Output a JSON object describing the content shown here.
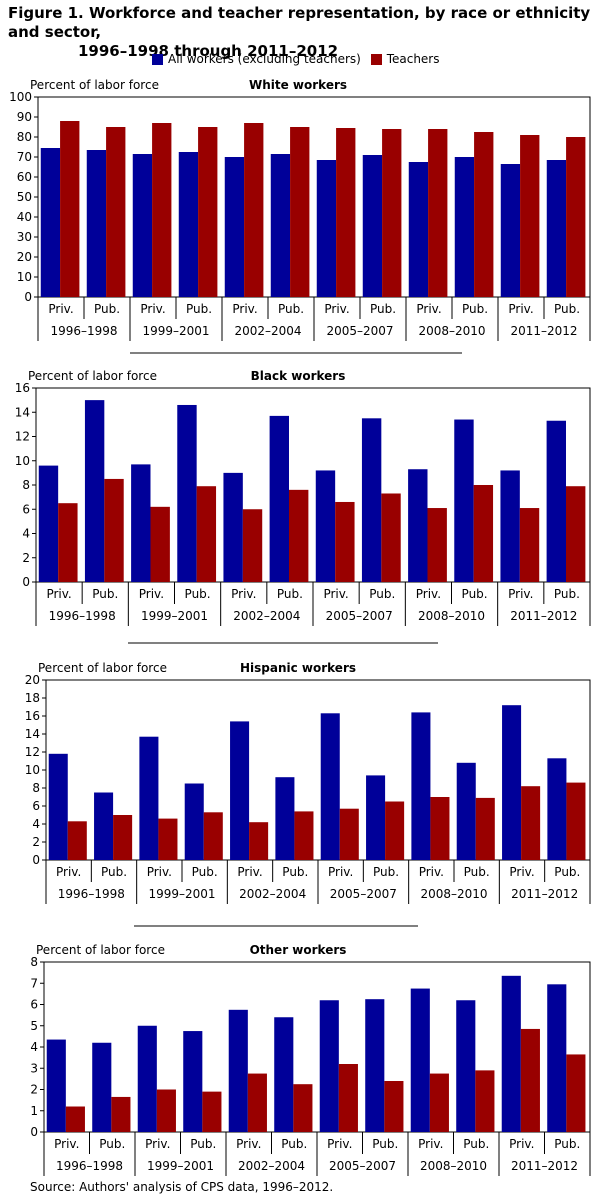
{
  "figure": {
    "title_line1": "Figure 1. Workforce and teacher representation, by race or ethnicity and sector,",
    "title_line2": "1996–1998 through 2011–2012",
    "source": "Source: Authors' analysis of CPS data, 1996–2012."
  },
  "legend": {
    "series1": "All workers (excluding teachers)",
    "series2": "Teachers",
    "color1": "#000099",
    "color2": "#990000"
  },
  "chart_data": [
    {
      "type": "bar",
      "title": "White workers",
      "ylabel": "Percent of labor force",
      "ylim": [
        0,
        100
      ],
      "yticks": [
        0,
        10,
        20,
        30,
        40,
        50,
        60,
        70,
        80,
        90,
        100
      ],
      "categories": [
        "Priv.",
        "Pub.",
        "Priv.",
        "Pub.",
        "Priv.",
        "Pub.",
        "Priv.",
        "Pub.",
        "Priv.",
        "Pub.",
        "Priv.",
        "Pub."
      ],
      "groups": [
        "1996–1998",
        "1999–2001",
        "2002–2004",
        "2005–2007",
        "2008–2010",
        "2011–2012"
      ],
      "series": [
        {
          "name": "All workers (excluding teachers)",
          "values": [
            74.5,
            73.5,
            71.5,
            72.5,
            70,
            71.5,
            68.5,
            71,
            67.5,
            70,
            66.5,
            68.5
          ]
        },
        {
          "name": "Teachers",
          "values": [
            88,
            85,
            87,
            85,
            87,
            85,
            84.5,
            84,
            84,
            82.5,
            81,
            80
          ]
        }
      ]
    },
    {
      "type": "bar",
      "title": "Black workers",
      "ylabel": "Percent of labor force",
      "ylim": [
        0,
        16
      ],
      "yticks": [
        0,
        2,
        4,
        6,
        8,
        10,
        12,
        14,
        16
      ],
      "categories": [
        "Priv.",
        "Pub.",
        "Priv.",
        "Pub.",
        "Priv.",
        "Pub.",
        "Priv.",
        "Pub.",
        "Priv.",
        "Pub.",
        "Priv.",
        "Pub."
      ],
      "groups": [
        "1996–1998",
        "1999–2001",
        "2002–2004",
        "2005–2007",
        "2008–2010",
        "2011–2012"
      ],
      "series": [
        {
          "name": "All workers (excluding teachers)",
          "values": [
            9.6,
            15,
            9.7,
            14.6,
            9,
            13.7,
            9.2,
            13.5,
            9.3,
            13.4,
            9.2,
            13.3
          ]
        },
        {
          "name": "Teachers",
          "values": [
            6.5,
            8.5,
            6.2,
            7.9,
            6,
            7.6,
            6.6,
            7.3,
            6.1,
            8,
            6.1,
            7.9
          ]
        }
      ]
    },
    {
      "type": "bar",
      "title": "Hispanic workers",
      "ylabel": "Percent of labor force",
      "ylim": [
        0,
        20
      ],
      "yticks": [
        0,
        2,
        4,
        6,
        8,
        10,
        12,
        14,
        16,
        18,
        20
      ],
      "categories": [
        "Priv.",
        "Pub.",
        "Priv.",
        "Pub.",
        "Priv.",
        "Pub.",
        "Priv.",
        "Pub.",
        "Priv.",
        "Pub.",
        "Priv.",
        "Pub."
      ],
      "groups": [
        "1996–1998",
        "1999–2001",
        "2002–2004",
        "2005–2007",
        "2008–2010",
        "2011–2012"
      ],
      "series": [
        {
          "name": "All workers (excluding teachers)",
          "values": [
            11.8,
            7.5,
            13.7,
            8.5,
            15.4,
            9.2,
            16.3,
            9.4,
            16.4,
            10.8,
            17.2,
            11.3
          ]
        },
        {
          "name": "Teachers",
          "values": [
            4.3,
            5,
            4.6,
            5.3,
            4.2,
            5.4,
            5.7,
            6.5,
            7,
            6.9,
            8.2,
            8.6
          ]
        }
      ]
    },
    {
      "type": "bar",
      "title": "Other workers",
      "ylabel": "Percent of labor force",
      "ylim": [
        0,
        8
      ],
      "yticks": [
        0,
        1,
        2,
        3,
        4,
        5,
        6,
        7,
        8
      ],
      "categories": [
        "Priv.",
        "Pub.",
        "Priv.",
        "Pub.",
        "Priv.",
        "Pub.",
        "Priv.",
        "Pub.",
        "Priv.",
        "Pub.",
        "Priv.",
        "Pub."
      ],
      "groups": [
        "1996–1998",
        "1999–2001",
        "2002–2004",
        "2005–2007",
        "2008–2010",
        "2011–2012"
      ],
      "series": [
        {
          "name": "All workers (excluding teachers)",
          "values": [
            4.35,
            4.2,
            5,
            4.75,
            5.75,
            5.4,
            6.2,
            6.25,
            6.75,
            6.2,
            7.35,
            6.95
          ]
        },
        {
          "name": "Teachers",
          "values": [
            1.2,
            1.65,
            2,
            1.9,
            2.75,
            2.25,
            3.2,
            2.4,
            2.75,
            2.9,
            4.85,
            3.65
          ]
        }
      ]
    }
  ]
}
